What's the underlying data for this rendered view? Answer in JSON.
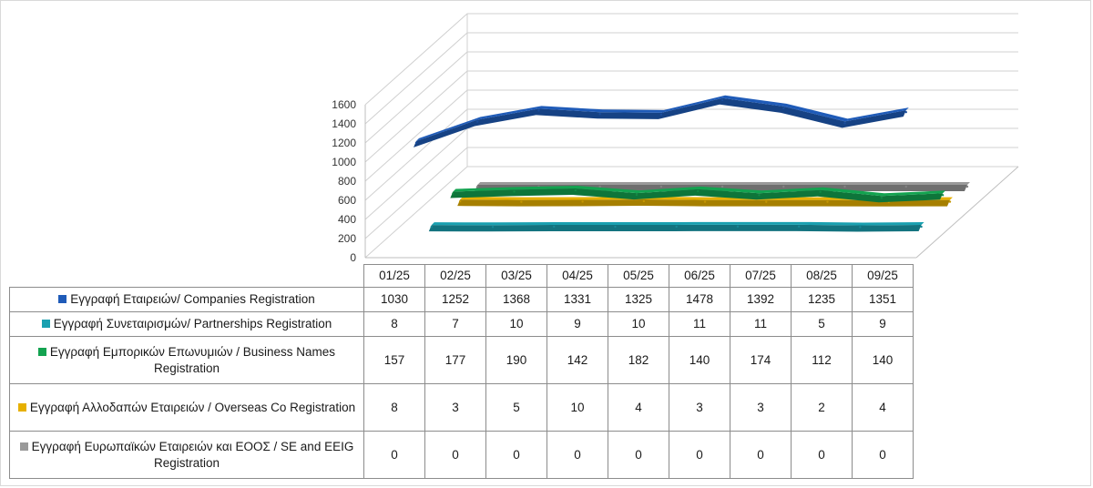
{
  "chart_data": {
    "type": "line",
    "style": "3d-ribbon",
    "categories": [
      "01/25",
      "02/25",
      "03/25",
      "04/25",
      "05/25",
      "06/25",
      "07/25",
      "08/25",
      "09/25"
    ],
    "ylim": [
      0,
      1600
    ],
    "yticks": [
      "0",
      "200",
      "400",
      "600",
      "800",
      "1000",
      "1200",
      "1400",
      "1600"
    ],
    "series": [
      {
        "key": "companies",
        "name": "Εγγραφή Εταιρειών/ Companies Registration",
        "color": "#1f5bb8",
        "values": [
          1030,
          1252,
          1368,
          1331,
          1325,
          1478,
          1392,
          1235,
          1351
        ]
      },
      {
        "key": "partnerships",
        "name": "Εγγραφή Συνεταιρισμών/ Partnerships Registration",
        "color": "#1aa0b0",
        "values": [
          8,
          7,
          10,
          9,
          10,
          11,
          11,
          5,
          9
        ]
      },
      {
        "key": "business",
        "name": "Εγγραφή Εμπορικών Επωνυμιών / Business Names Registration",
        "color": "#13a350",
        "values": [
          157,
          177,
          190,
          142,
          182,
          140,
          174,
          112,
          140
        ]
      },
      {
        "key": "overseas",
        "name": "Εγγραφή Αλλοδαπών Εταιρειών / Overseas Co Registration",
        "color": "#e6b000",
        "values": [
          8,
          3,
          5,
          10,
          4,
          3,
          3,
          2,
          4
        ]
      },
      {
        "key": "se_eeig",
        "name": "Εγγραφή Ευρωπαϊκών Εταιρειών και ΕΟΟΣ / SE and EEIG Registration",
        "color": "#9a9a9a",
        "values": [
          0,
          0,
          0,
          0,
          0,
          0,
          0,
          0,
          0
        ]
      }
    ]
  }
}
